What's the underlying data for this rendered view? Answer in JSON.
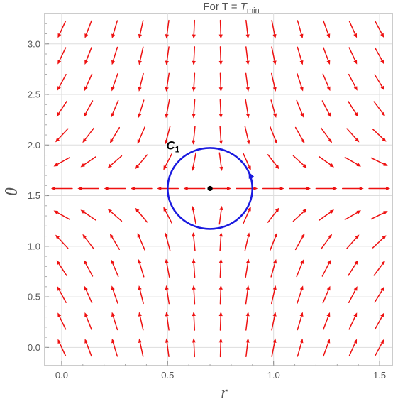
{
  "chart_data": {
    "type": "vector-field",
    "title": {
      "prefix": "For  T = ",
      "var": "T",
      "sub": "min"
    },
    "xlabel": "r",
    "ylabel": "θ",
    "xlim": [
      -0.08,
      1.56
    ],
    "ylim": [
      -0.18,
      3.3
    ],
    "xticks": [
      0.0,
      0.5,
      1.0,
      1.5
    ],
    "xtick_labels": [
      "0.0",
      "0.5",
      "1.0",
      "1.5"
    ],
    "yticks": [
      0.0,
      0.5,
      1.0,
      1.5,
      2.0,
      2.5,
      3.0
    ],
    "ytick_labels": [
      "0.0",
      "0.5",
      "1.0",
      "1.5",
      "2.0",
      "2.5",
      "3.0"
    ],
    "grid": true,
    "field": {
      "r_min": 0.0,
      "r_max": 1.5,
      "r_count": 13,
      "theta_min": 0.0,
      "theta_max": 3.14159,
      "theta_count": 13,
      "zero_point": [
        0.7,
        1.5708
      ],
      "arrow_color": "#ee1111"
    },
    "contour": {
      "label": "C",
      "label_sub": "1",
      "center": [
        0.7,
        1.5708
      ],
      "radius_r": 0.2,
      "radius_theta": 0.4,
      "color": "#1a1adf"
    },
    "point": {
      "r": 0.7,
      "theta": 1.5708,
      "color": "#000000"
    }
  }
}
